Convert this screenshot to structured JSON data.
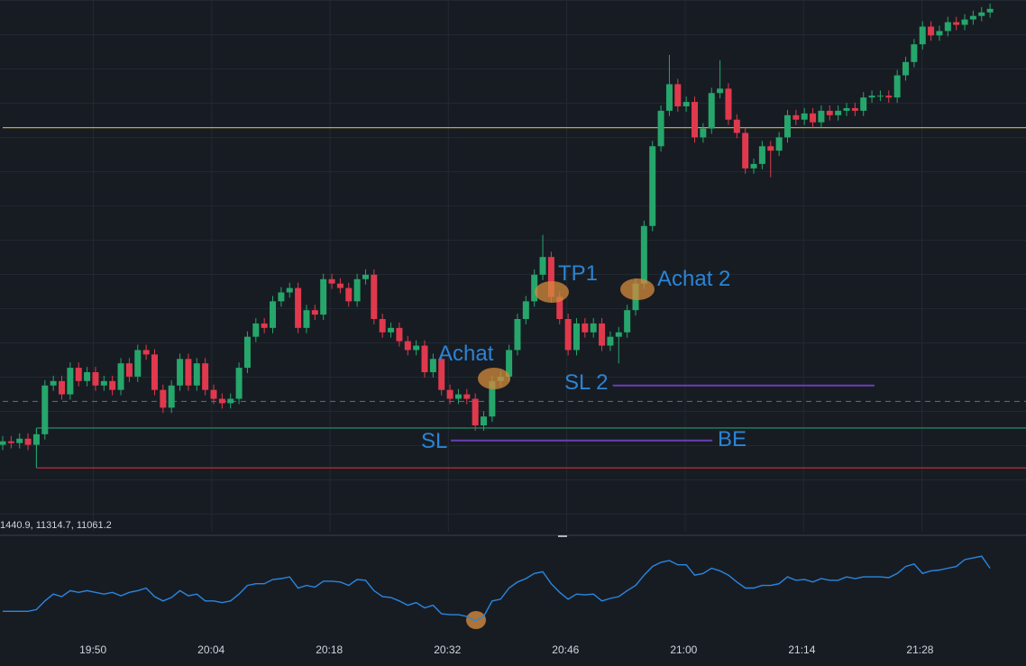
{
  "chart_data": {
    "type": "candlestick",
    "ylim": [
      0,
      600
    ],
    "open": [
      98,
      102,
      100,
      105,
      98,
      110,
      165,
      170,
      155,
      185,
      170,
      180,
      165,
      170,
      160,
      190,
      175,
      205,
      200,
      160,
      140,
      165,
      195,
      165,
      190,
      160,
      150,
      145,
      150,
      185,
      220,
      235,
      230,
      260,
      270,
      275,
      230,
      250,
      245,
      285,
      280,
      275,
      260,
      285,
      290,
      240,
      225,
      230,
      215,
      205,
      210,
      180,
      195,
      160,
      150,
      155,
      150,
      120,
      130,
      170,
      175,
      205,
      240,
      260,
      290,
      310,
      265,
      240,
      205,
      235,
      225,
      235,
      210,
      220,
      225,
      250,
      280,
      345,
      435,
      475,
      505,
      480,
      485,
      445,
      455,
      495,
      500,
      465,
      450,
      410,
      415,
      435,
      430,
      445,
      470,
      465,
      472,
      462,
      475,
      470,
      475,
      478,
      475,
      490,
      492,
      492,
      490,
      515,
      530,
      550,
      570,
      560,
      565,
      575,
      572,
      578,
      582,
      586
    ],
    "high": [
      108,
      108,
      111,
      111,
      116,
      171,
      176,
      176,
      191,
      191,
      186,
      186,
      176,
      176,
      196,
      196,
      211,
      211,
      206,
      166,
      171,
      201,
      201,
      196,
      196,
      166,
      156,
      156,
      191,
      226,
      241,
      241,
      266,
      276,
      281,
      281,
      256,
      256,
      291,
      291,
      286,
      281,
      291,
      296,
      296,
      246,
      236,
      236,
      221,
      216,
      216,
      201,
      201,
      166,
      161,
      161,
      156,
      136,
      176,
      181,
      211,
      246,
      266,
      296,
      335,
      316,
      271,
      246,
      241,
      241,
      241,
      241,
      226,
      231,
      256,
      286,
      351,
      441,
      481,
      538,
      511,
      491,
      491,
      461,
      501,
      532,
      506,
      471,
      456,
      421,
      441,
      441,
      451,
      476,
      476,
      478,
      478,
      481,
      481,
      481,
      484,
      484,
      496,
      498,
      498,
      498,
      521,
      536,
      556,
      576,
      576,
      571,
      581,
      581,
      584,
      588,
      592,
      596
    ],
    "low": [
      92,
      94,
      94,
      92,
      92,
      104,
      159,
      149,
      149,
      164,
      164,
      159,
      159,
      154,
      154,
      169,
      169,
      194,
      154,
      134,
      134,
      159,
      159,
      159,
      154,
      144,
      139,
      139,
      144,
      179,
      214,
      224,
      224,
      254,
      264,
      224,
      224,
      239,
      239,
      274,
      269,
      254,
      254,
      279,
      234,
      219,
      219,
      209,
      199,
      199,
      174,
      174,
      154,
      144,
      144,
      144,
      114,
      114,
      124,
      164,
      169,
      199,
      234,
      254,
      284,
      259,
      234,
      199,
      199,
      219,
      219,
      204,
      204,
      190,
      219,
      244,
      274,
      339,
      429,
      469,
      474,
      474,
      439,
      439,
      449,
      489,
      459,
      444,
      404,
      404,
      409,
      400,
      424,
      439,
      459,
      459,
      456,
      456,
      464,
      464,
      469,
      469,
      469,
      484,
      486,
      484,
      484,
      509,
      524,
      544,
      554,
      554,
      559,
      566,
      566,
      572,
      576,
      580
    ],
    "close": [
      102,
      100,
      105,
      98,
      110,
      165,
      170,
      155,
      185,
      170,
      180,
      165,
      170,
      160,
      190,
      175,
      205,
      200,
      160,
      140,
      165,
      195,
      165,
      190,
      160,
      150,
      145,
      150,
      185,
      220,
      235,
      230,
      260,
      270,
      275,
      230,
      250,
      245,
      285,
      280,
      275,
      260,
      285,
      290,
      240,
      225,
      230,
      215,
      205,
      210,
      180,
      195,
      160,
      150,
      155,
      150,
      120,
      130,
      170,
      175,
      205,
      240,
      260,
      290,
      310,
      265,
      240,
      205,
      235,
      225,
      235,
      210,
      220,
      225,
      250,
      280,
      345,
      435,
      475,
      505,
      480,
      485,
      445,
      455,
      495,
      500,
      465,
      450,
      410,
      415,
      435,
      430,
      445,
      470,
      465,
      472,
      462,
      475,
      470,
      475,
      478,
      475,
      490,
      492,
      492,
      490,
      515,
      530,
      550,
      570,
      560,
      565,
      575,
      572,
      578,
      582,
      586,
      590
    ],
    "up_color": "#26a66b",
    "down_color": "#e0394d",
    "xticks": [
      {
        "value": 10.7,
        "label": "19:50"
      },
      {
        "value": 24.7,
        "label": "20:04"
      },
      {
        "value": 38.7,
        "label": "20:18"
      },
      {
        "value": 52.7,
        "label": "20:32"
      },
      {
        "value": 66.7,
        "label": "20:46"
      },
      {
        "value": 80.7,
        "label": "21:00"
      },
      {
        "value": 94.7,
        "label": "21:14"
      },
      {
        "value": 108.7,
        "label": "21:28"
      }
    ],
    "levels": [
      {
        "value": 456,
        "from": 0,
        "color": "#b8a845",
        "dashed": false
      },
      {
        "value": 147,
        "from": 0,
        "color": "#5d6470",
        "dashed": true
      },
      {
        "value": 117,
        "from": 4,
        "color": "#1f9b6e",
        "dashed": false
      },
      {
        "value": 72,
        "from": 4,
        "color": "#c8323f",
        "dashed": false
      },
      {
        "value": 103,
        "from": 53.1,
        "to": 84.1,
        "color": "#6a3fb5",
        "dashed": false
      },
      {
        "value": 165,
        "from": 72.3,
        "to": 103.3,
        "color": "#6a3fb5",
        "dashed": false
      }
    ],
    "annotations": [
      "Achat",
      "TP1",
      "Achat 2",
      "SL 2",
      "SL",
      "BE"
    ],
    "indicator": {
      "legend": "1440.9, 11314.7, 11061.2",
      "color": "#2a86e0",
      "ylim": [
        0,
        110
      ],
      "values": [
        28,
        28,
        28,
        28,
        30,
        40,
        48,
        45,
        52,
        50,
        52,
        50,
        48,
        50,
        46,
        50,
        52,
        55,
        45,
        40,
        44,
        52,
        46,
        48,
        40,
        40,
        38,
        40,
        48,
        58,
        60,
        60,
        65,
        66,
        68,
        55,
        58,
        56,
        63,
        63,
        62,
        58,
        65,
        64,
        52,
        45,
        44,
        40,
        35,
        38,
        32,
        35,
        25,
        24,
        24,
        22,
        17,
        22,
        40,
        42,
        55,
        62,
        66,
        72,
        74,
        60,
        50,
        42,
        48,
        47,
        48,
        40,
        43,
        45,
        52,
        58,
        70,
        80,
        85,
        87,
        82,
        82,
        70,
        72,
        78,
        75,
        70,
        62,
        55,
        55,
        58,
        58,
        60,
        68,
        64,
        65,
        62,
        66,
        64,
        64,
        68,
        66,
        68,
        68,
        68,
        67,
        72,
        80,
        83,
        72,
        75,
        76,
        78,
        80,
        88,
        90,
        92,
        78
      ]
    }
  }
}
